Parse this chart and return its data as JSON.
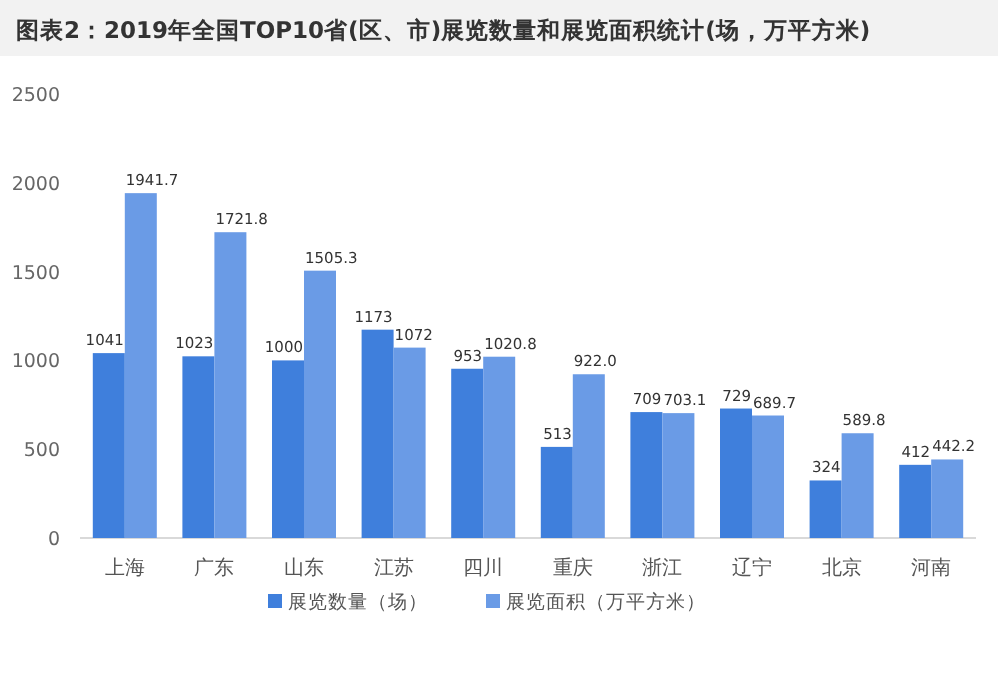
{
  "chart_data": {
    "type": "bar",
    "title": "图表2：2019年全国TOP10省(区、市)展览数量和展览面积统计(场，万平方米)",
    "categories": [
      "上海",
      "广东",
      "山东",
      "江苏",
      "四川",
      "重庆",
      "浙江",
      "辽宁",
      "北京",
      "河南"
    ],
    "series": [
      {
        "name": "展览数量（场）",
        "color": "#3f7fdc",
        "values": [
          1041,
          1023,
          1000,
          1173,
          953,
          513,
          709,
          729,
          324,
          412
        ],
        "value_labels": [
          "1041",
          "1023",
          "1000",
          "1173",
          "953",
          "513",
          "709",
          "729",
          "324",
          "412"
        ]
      },
      {
        "name": "展览面积（万平方米）",
        "color": "#6a9be6",
        "values": [
          1941.7,
          1721.8,
          1505.3,
          1072,
          1020.8,
          922.0,
          703.1,
          689.7,
          589.8,
          442.2
        ],
        "value_labels": [
          "1941.7",
          "1721.8",
          "1505.3",
          "1072",
          "1020.8",
          "922.0",
          "703.1",
          "689.7",
          "589.8",
          "442.2"
        ]
      }
    ],
    "ylim": [
      0,
      2500
    ],
    "yticks": [
      0,
      500,
      1000,
      1500,
      2000,
      2500
    ],
    "legend": "bottom"
  }
}
